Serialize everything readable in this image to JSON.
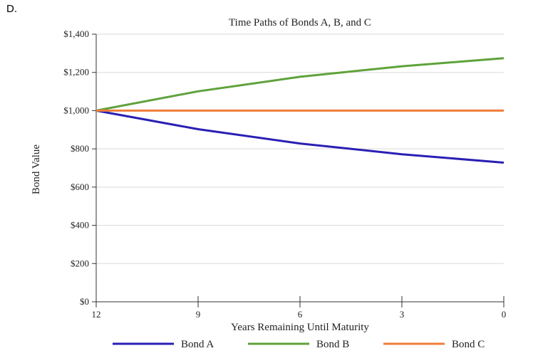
{
  "option_label": "D.",
  "chart_data": {
    "type": "line",
    "title": "Time Paths of Bonds A, B, and C",
    "xlabel": "Years Remaining Until Maturity",
    "ylabel": "Bond Value",
    "x": [
      12,
      9,
      6,
      3,
      0
    ],
    "x_ticks": [
      "12",
      "9",
      "6",
      "3",
      "0"
    ],
    "xlim": [
      12,
      0
    ],
    "ylim": [
      0,
      1400
    ],
    "y_ticks": [
      0,
      200,
      400,
      600,
      800,
      1000,
      1200,
      1400
    ],
    "y_tick_labels": [
      "$0",
      "$200",
      "$400",
      "$600",
      "$800",
      "$1,000",
      "$1,200",
      "$1,400"
    ],
    "grid": true,
    "legend_position": "bottom",
    "series": [
      {
        "name": "Bond A",
        "color": "#2a1fb4",
        "values": [
          1000,
          903,
          828,
          772,
          728
        ]
      },
      {
        "name": "Bond B",
        "color": "#5fa23b",
        "values": [
          1000,
          1101,
          1177,
          1232,
          1274
        ]
      },
      {
        "name": "Bond C",
        "color": "#ef7d3a",
        "values": [
          1000,
          1000,
          1000,
          1000,
          1000
        ]
      }
    ]
  }
}
